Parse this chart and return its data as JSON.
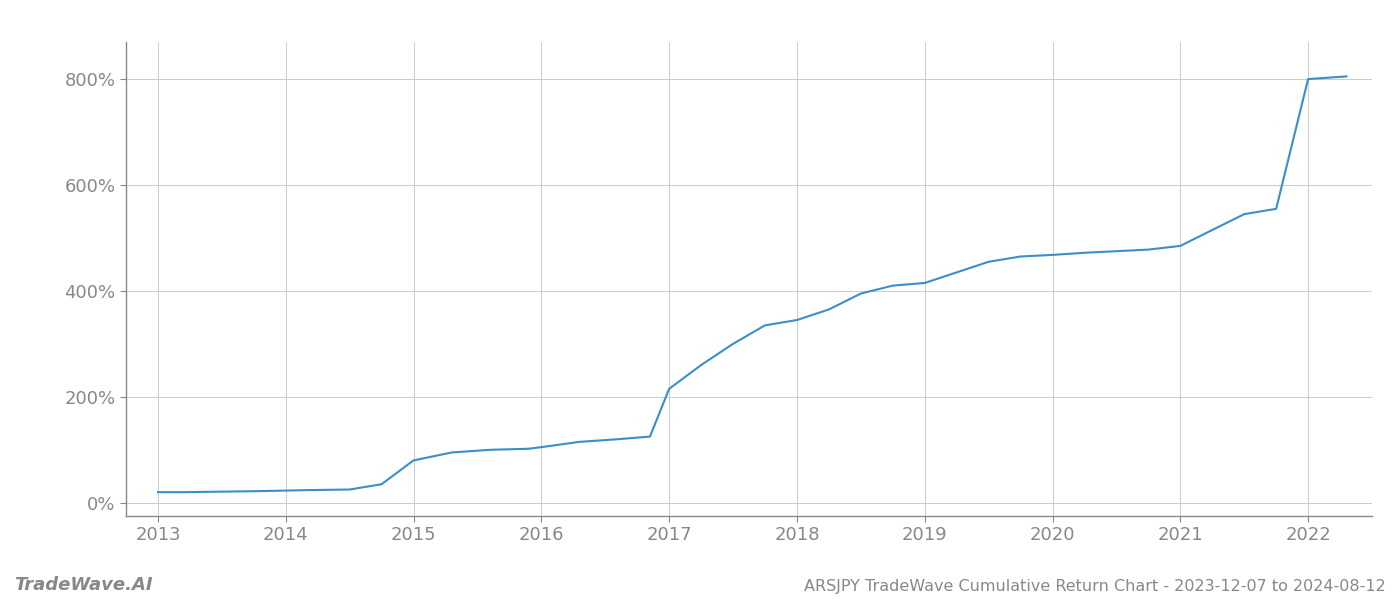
{
  "title": "ARSJPY TradeWave Cumulative Return Chart - 2023-12-07 to 2024-08-12",
  "watermark": "TradeWave.AI",
  "line_color": "#3a8fc8",
  "background_color": "#ffffff",
  "grid_color": "#cccccc",
  "x_values": [
    2013.0,
    2013.2,
    2013.5,
    2013.8,
    2014.0,
    2014.2,
    2014.5,
    2014.75,
    2015.0,
    2015.3,
    2015.6,
    2015.9,
    2016.0,
    2016.3,
    2016.6,
    2016.85,
    2017.0,
    2017.25,
    2017.5,
    2017.75,
    2018.0,
    2018.25,
    2018.5,
    2018.75,
    2019.0,
    2019.25,
    2019.5,
    2019.75,
    2020.0,
    2020.25,
    2020.5,
    2020.75,
    2021.0,
    2021.25,
    2021.5,
    2021.75,
    2022.0,
    2022.3
  ],
  "y_values": [
    20,
    20,
    21,
    22,
    23,
    24,
    25,
    35,
    80,
    95,
    100,
    102,
    105,
    115,
    120,
    125,
    215,
    260,
    300,
    335,
    345,
    365,
    395,
    410,
    415,
    435,
    455,
    465,
    468,
    472,
    475,
    478,
    485,
    515,
    545,
    555,
    800,
    805
  ],
  "xlim": [
    2012.75,
    2022.5
  ],
  "ylim": [
    -25,
    870
  ],
  "yticks": [
    0,
    200,
    400,
    600,
    800
  ],
  "ytick_labels": [
    "0%",
    "200%",
    "400%",
    "600%",
    "800%"
  ],
  "xticks": [
    2013,
    2014,
    2015,
    2016,
    2017,
    2018,
    2019,
    2020,
    2021,
    2022
  ],
  "line_width": 1.5,
  "title_fontsize": 11.5,
  "tick_fontsize": 13,
  "watermark_fontsize": 13,
  "title_color": "#888888",
  "tick_color": "#888888",
  "spine_color": "#888888"
}
